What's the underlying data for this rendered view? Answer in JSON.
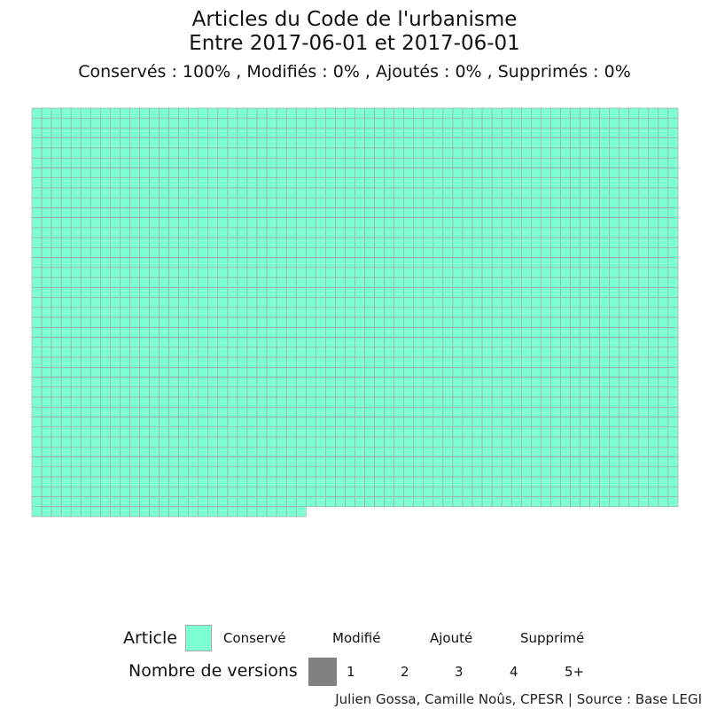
{
  "chart_data": {
    "type": "waffle",
    "title_line1": "Articles du Code de l'urbanisme",
    "title_line2": "Entre 2017-06-01 et 2017-06-01",
    "subtitle": "Conservés :  100% , Modifiés :  0% , Ajoutés :  0% , Supprimés :  0%",
    "cols": 66,
    "rows": 41,
    "last_row_count": 28,
    "total_articles": 2668,
    "category": "Conservé",
    "cell_color": "#7fffd4",
    "cell_border": "#9e9e9e",
    "legend": {
      "article_title": "Article",
      "article_items": [
        "Conservé",
        "Modifié",
        "Ajouté",
        "Supprimé"
      ],
      "article_color": "#7fffd4",
      "versions_title": "Nombre de versions",
      "versions_items": [
        "1",
        "2",
        "3",
        "4",
        "5+"
      ],
      "versions_color": "#808080"
    },
    "caption": "Julien Gossa, Camille Noûs, CPESR  |  Source : Base LEGI"
  }
}
